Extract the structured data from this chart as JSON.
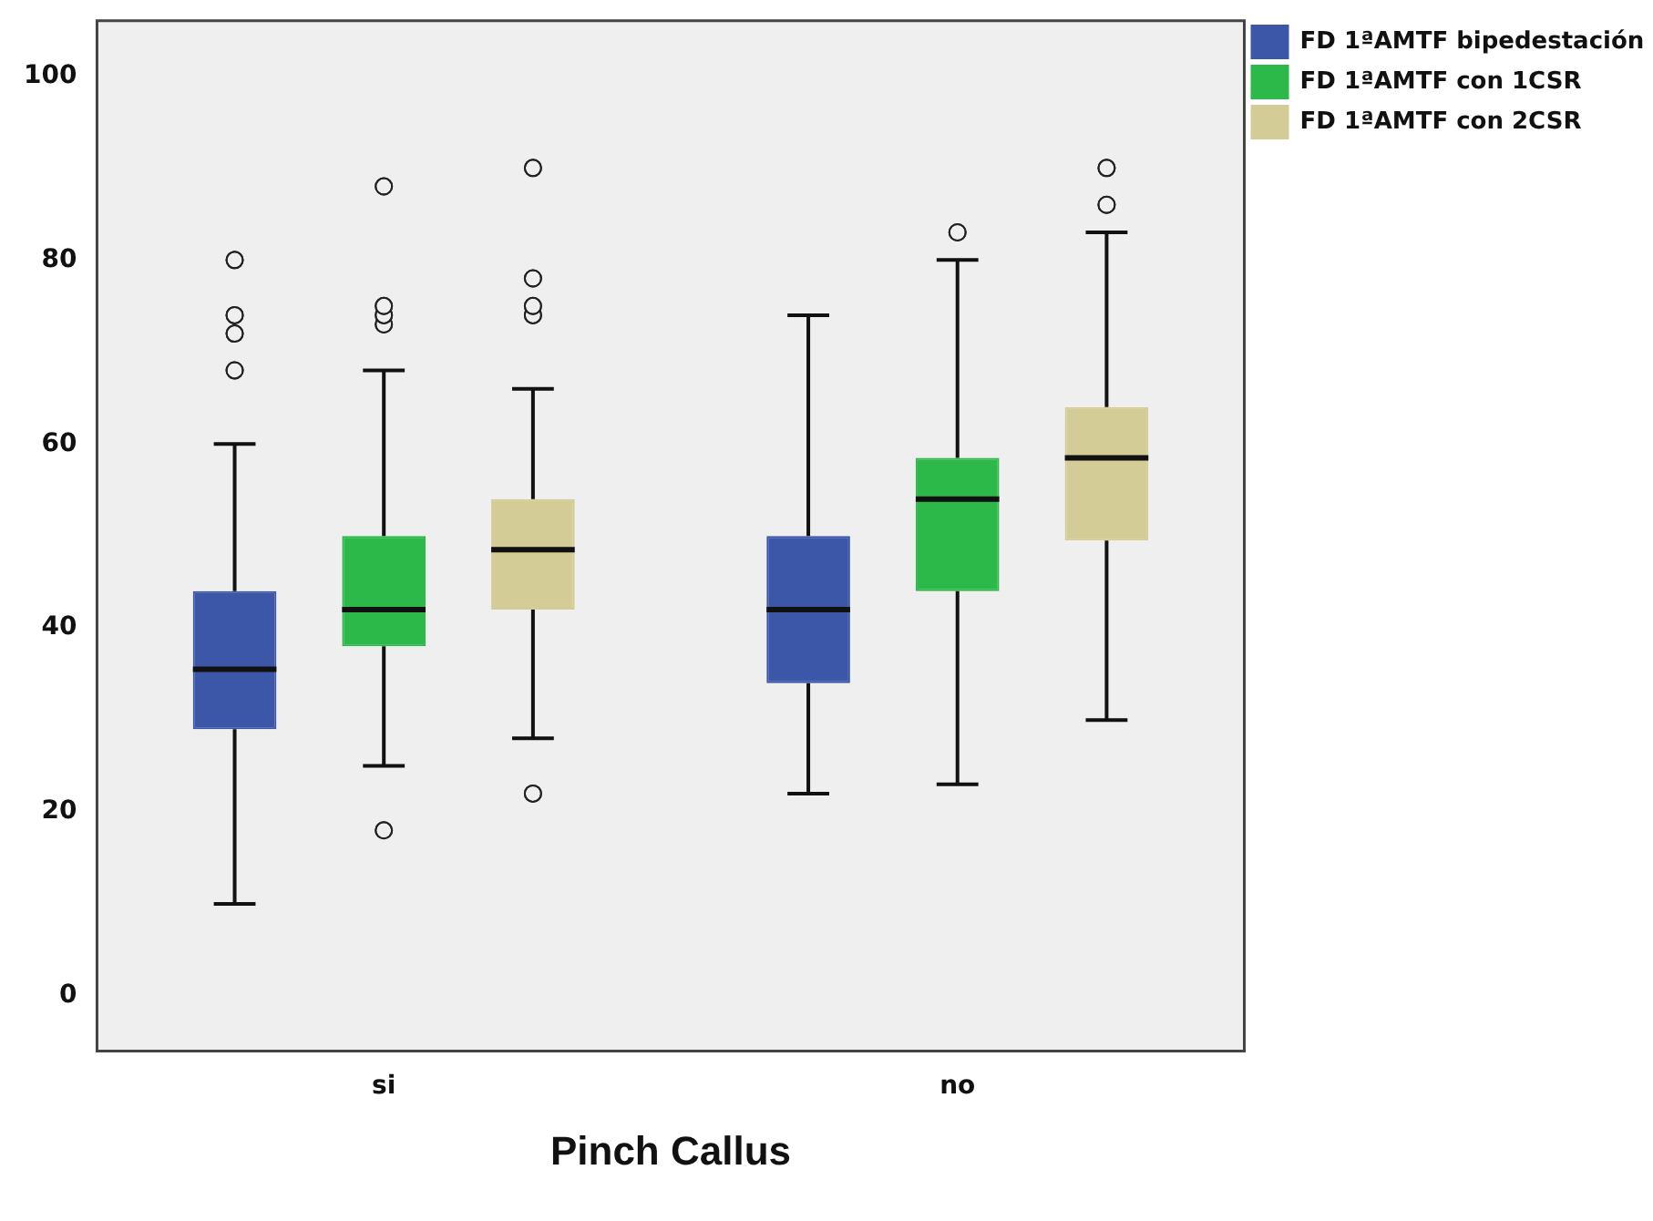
{
  "chart_data": {
    "type": "box",
    "xlabel": "Pinch Callus",
    "categories": [
      "si",
      "no"
    ],
    "ylim": [
      -6,
      106
    ],
    "yticks": [
      0,
      20,
      40,
      60,
      80,
      100
    ],
    "grid": false,
    "legend": "right",
    "marker": "circle",
    "series": [
      {
        "name": "FD 1ªAMTF bipedestación",
        "color": "#3c56a8",
        "boxes": [
          {
            "low": 10,
            "q1": 29,
            "median": 35.5,
            "q3": 44,
            "high": 60,
            "outliers": [
              68,
              72,
              74,
              80
            ]
          },
          {
            "low": 22,
            "q1": 34,
            "median": 42,
            "q3": 50,
            "high": 74
          }
        ]
      },
      {
        "name": "FD 1ªAMTF con 1CSR",
        "color": "#2db84a",
        "boxes": [
          {
            "low": 25,
            "q1": 38,
            "median": 42,
            "q3": 50,
            "high": 68,
            "outliers": [
              18,
              73,
              74,
              75,
              88
            ]
          },
          {
            "low": 23,
            "q1": 44,
            "median": 54,
            "q3": 58.5,
            "high": 80,
            "outliers": [
              83
            ]
          }
        ]
      },
      {
        "name": "FD 1ªAMTF con 2CSR",
        "color": "#d4cc96",
        "boxes": [
          {
            "low": 28,
            "q1": 42,
            "median": 48.5,
            "q3": 54,
            "high": 66,
            "outliers": [
              22,
              74,
              75,
              78,
              90
            ]
          },
          {
            "low": 30,
            "q1": 49.5,
            "median": 58.5,
            "q3": 64,
            "high": 83,
            "outliers": [
              86,
              90
            ]
          }
        ]
      }
    ]
  }
}
